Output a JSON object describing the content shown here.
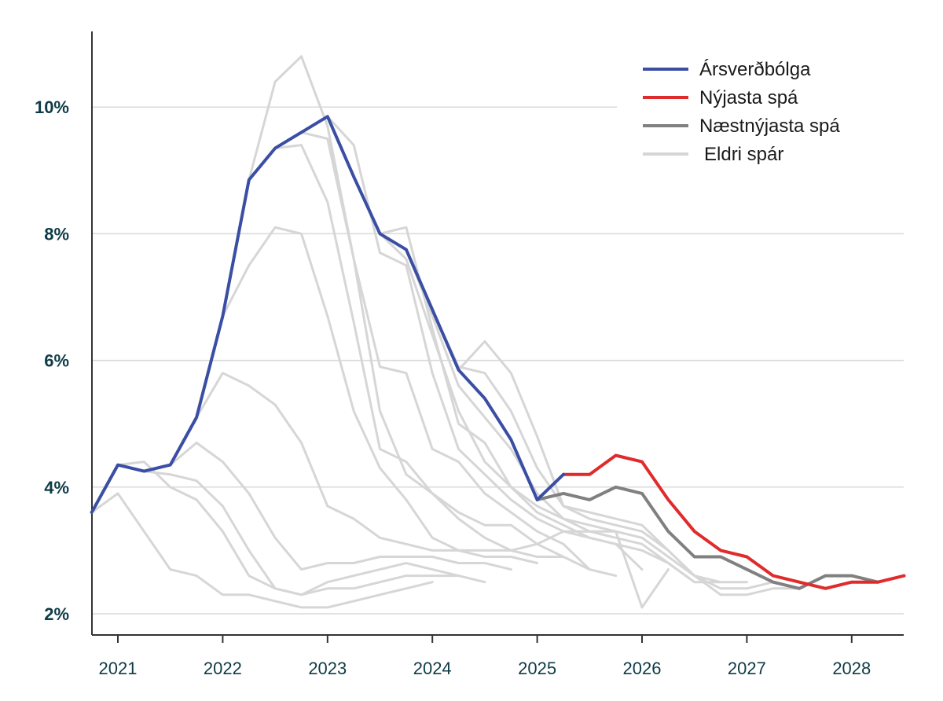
{
  "chart_data": {
    "type": "line",
    "title": "",
    "xlabel": "",
    "ylabel": "",
    "xlim": [
      2020.75,
      2028.5
    ],
    "ylim": [
      1.7,
      11.2
    ],
    "x_ticks": [
      {
        "value": 2021,
        "label": "2021"
      },
      {
        "value": 2022,
        "label": "2022"
      },
      {
        "value": 2023,
        "label": "2023"
      },
      {
        "value": 2024,
        "label": "2024"
      },
      {
        "value": 2025,
        "label": "2025"
      },
      {
        "value": 2026,
        "label": "2026"
      },
      {
        "value": 2027,
        "label": "2027"
      },
      {
        "value": 2028,
        "label": "2028"
      }
    ],
    "y_ticks": [
      {
        "value": 2,
        "label": "2%"
      },
      {
        "value": 4,
        "label": "4%"
      },
      {
        "value": 6,
        "label": "6%"
      },
      {
        "value": 8,
        "label": "8%"
      },
      {
        "value": 10,
        "label": "10%"
      }
    ],
    "grid": true,
    "legend_position": "top-right",
    "series": [
      {
        "name": "Árs­verðbólga",
        "label": "Ársverðbólga",
        "color": "#3a4ea3",
        "role": "actual",
        "points": [
          [
            2020.75,
            3.6
          ],
          [
            2021,
            4.35
          ],
          [
            2021.25,
            4.25
          ],
          [
            2021.5,
            4.35
          ],
          [
            2021.75,
            5.1
          ],
          [
            2022,
            6.7
          ],
          [
            2022.25,
            8.85
          ],
          [
            2022.5,
            9.35
          ],
          [
            2022.75,
            9.6
          ],
          [
            2023,
            9.85
          ],
          [
            2023.25,
            8.9
          ],
          [
            2023.5,
            8.0
          ],
          [
            2023.75,
            7.75
          ],
          [
            2024,
            6.8
          ],
          [
            2024.25,
            5.85
          ],
          [
            2024.5,
            5.4
          ],
          [
            2024.75,
            4.75
          ],
          [
            2025,
            3.8
          ],
          [
            2025.25,
            4.2
          ]
        ]
      },
      {
        "name": "Nýjasta spá",
        "label": "Nýjasta spá",
        "color": "#e02b2b",
        "role": "latest",
        "points": [
          [
            2025.25,
            4.2
          ],
          [
            2025.5,
            4.2
          ],
          [
            2025.75,
            4.5
          ],
          [
            2026,
            4.4
          ],
          [
            2026.25,
            3.8
          ],
          [
            2026.5,
            3.3
          ],
          [
            2026.75,
            3.0
          ],
          [
            2027,
            2.9
          ],
          [
            2027.25,
            2.6
          ],
          [
            2027.5,
            2.5
          ],
          [
            2027.75,
            2.4
          ],
          [
            2028,
            2.5
          ],
          [
            2028.25,
            2.5
          ],
          [
            2028.5,
            2.6
          ]
        ]
      },
      {
        "name": "Næstnýjasta spá",
        "label": "Næstnýjasta spá",
        "color": "#808080",
        "role": "previous",
        "points": [
          [
            2025,
            3.8
          ],
          [
            2025.25,
            3.9
          ],
          [
            2025.5,
            3.8
          ],
          [
            2025.75,
            4.0
          ],
          [
            2026,
            3.9
          ],
          [
            2026.25,
            3.3
          ],
          [
            2026.5,
            2.9
          ],
          [
            2026.75,
            2.9
          ],
          [
            2027,
            2.7
          ],
          [
            2027.25,
            2.5
          ],
          [
            2027.5,
            2.4
          ],
          [
            2027.75,
            2.6
          ],
          [
            2028,
            2.6
          ],
          [
            2028.25,
            2.5
          ]
        ]
      },
      {
        "name": "Eldri spár",
        "label": "Eldri spár",
        "color": "#d6d6d6",
        "role": "older",
        "lines": [
          [
            [
              2020.75,
              3.6
            ],
            [
              2021,
              3.9
            ],
            [
              2021.25,
              3.3
            ],
            [
              2021.5,
              2.7
            ],
            [
              2021.75,
              2.6
            ],
            [
              2022,
              2.3
            ],
            [
              2022.25,
              2.3
            ],
            [
              2022.5,
              2.2
            ],
            [
              2022.75,
              2.1
            ],
            [
              2023,
              2.1
            ],
            [
              2023.25,
              2.2
            ],
            [
              2023.5,
              2.3
            ],
            [
              2023.75,
              2.4
            ],
            [
              2024,
              2.5
            ]
          ],
          [
            [
              2021,
              4.35
            ],
            [
              2021.25,
              4.4
            ],
            [
              2021.5,
              4.0
            ],
            [
              2021.75,
              3.8
            ],
            [
              2022,
              3.3
            ],
            [
              2022.25,
              2.6
            ],
            [
              2022.5,
              2.4
            ],
            [
              2022.75,
              2.3
            ],
            [
              2023,
              2.5
            ],
            [
              2023.25,
              2.6
            ],
            [
              2023.5,
              2.7
            ],
            [
              2023.75,
              2.8
            ],
            [
              2024,
              2.7
            ],
            [
              2024.25,
              2.6
            ]
          ],
          [
            [
              2021.25,
              4.25
            ],
            [
              2021.5,
              4.2
            ],
            [
              2021.75,
              4.1
            ],
            [
              2022,
              3.7
            ],
            [
              2022.25,
              3.0
            ],
            [
              2022.5,
              2.4
            ],
            [
              2022.75,
              2.3
            ],
            [
              2023,
              2.4
            ],
            [
              2023.25,
              2.4
            ],
            [
              2023.5,
              2.5
            ],
            [
              2023.75,
              2.6
            ],
            [
              2024,
              2.6
            ],
            [
              2024.25,
              2.6
            ],
            [
              2024.5,
              2.5
            ]
          ],
          [
            [
              2021.5,
              4.35
            ],
            [
              2021.75,
              4.7
            ],
            [
              2022,
              4.4
            ],
            [
              2022.25,
              3.9
            ],
            [
              2022.5,
              3.2
            ],
            [
              2022.75,
              2.7
            ],
            [
              2023,
              2.8
            ],
            [
              2023.25,
              2.8
            ],
            [
              2023.5,
              2.9
            ],
            [
              2023.75,
              2.9
            ],
            [
              2024,
              2.9
            ],
            [
              2024.25,
              2.8
            ],
            [
              2024.5,
              2.8
            ],
            [
              2024.75,
              2.7
            ]
          ],
          [
            [
              2021.75,
              5.1
            ],
            [
              2022,
              5.8
            ],
            [
              2022.25,
              5.6
            ],
            [
              2022.5,
              5.3
            ],
            [
              2022.75,
              4.7
            ],
            [
              2023,
              3.7
            ],
            [
              2023.25,
              3.5
            ],
            [
              2023.5,
              3.2
            ],
            [
              2023.75,
              3.1
            ],
            [
              2024,
              3.0
            ],
            [
              2024.25,
              3.0
            ],
            [
              2024.5,
              2.9
            ],
            [
              2024.75,
              2.9
            ],
            [
              2025,
              2.8
            ]
          ],
          [
            [
              2022,
              6.7
            ],
            [
              2022.25,
              7.5
            ],
            [
              2022.5,
              8.1
            ],
            [
              2022.75,
              8.0
            ],
            [
              2023,
              6.7
            ],
            [
              2023.25,
              5.2
            ],
            [
              2023.5,
              4.3
            ],
            [
              2023.75,
              3.8
            ],
            [
              2024,
              3.2
            ],
            [
              2024.25,
              3.0
            ],
            [
              2024.5,
              3.0
            ],
            [
              2024.75,
              3.0
            ],
            [
              2025,
              2.9
            ],
            [
              2025.25,
              2.9
            ]
          ],
          [
            [
              2022.25,
              8.85
            ],
            [
              2022.5,
              10.4
            ],
            [
              2022.75,
              10.8
            ],
            [
              2023,
              9.7
            ],
            [
              2023.25,
              7.6
            ],
            [
              2023.5,
              5.9
            ],
            [
              2023.75,
              5.8
            ],
            [
              2024,
              4.6
            ],
            [
              2024.25,
              4.4
            ],
            [
              2024.5,
              3.9
            ],
            [
              2024.75,
              3.6
            ],
            [
              2025,
              3.3
            ],
            [
              2025.25,
              3.1
            ],
            [
              2025.5,
              2.7
            ]
          ],
          [
            [
              2022.5,
              9.35
            ],
            [
              2022.75,
              9.4
            ],
            [
              2023,
              8.5
            ],
            [
              2023.25,
              6.6
            ],
            [
              2023.5,
              4.6
            ],
            [
              2023.75,
              4.4
            ],
            [
              2024,
              3.9
            ],
            [
              2024.25,
              3.6
            ],
            [
              2024.5,
              3.4
            ],
            [
              2024.75,
              3.4
            ],
            [
              2025,
              3.1
            ],
            [
              2025.25,
              2.9
            ],
            [
              2025.5,
              2.7
            ],
            [
              2025.75,
              2.6
            ]
          ],
          [
            [
              2022.75,
              9.6
            ],
            [
              2023,
              9.5
            ],
            [
              2023.25,
              7.6
            ],
            [
              2023.5,
              5.2
            ],
            [
              2023.75,
              4.2
            ],
            [
              2024,
              3.9
            ],
            [
              2024.25,
              3.5
            ],
            [
              2024.5,
              3.2
            ],
            [
              2024.75,
              3.0
            ],
            [
              2025,
              3.1
            ],
            [
              2025.25,
              3.3
            ],
            [
              2025.5,
              3.2
            ],
            [
              2025.75,
              3.1
            ],
            [
              2026,
              2.7
            ]
          ],
          [
            [
              2023,
              9.85
            ],
            [
              2023.25,
              9.4
            ],
            [
              2023.5,
              7.7
            ],
            [
              2023.75,
              7.5
            ],
            [
              2024,
              5.8
            ],
            [
              2024.25,
              4.6
            ],
            [
              2024.5,
              4.2
            ],
            [
              2024.75,
              3.8
            ],
            [
              2025,
              3.5
            ],
            [
              2025.25,
              3.3
            ],
            [
              2025.5,
              3.3
            ],
            [
              2025.75,
              3.3
            ],
            [
              2026,
              2.1
            ],
            [
              2026.25,
              2.7
            ]
          ],
          [
            [
              2023.25,
              8.9
            ],
            [
              2023.5,
              8.0
            ],
            [
              2023.75,
              8.1
            ],
            [
              2024,
              6.5
            ],
            [
              2024.25,
              5.0
            ],
            [
              2024.5,
              4.7
            ],
            [
              2024.75,
              4.0
            ],
            [
              2025,
              3.6
            ],
            [
              2025.25,
              3.4
            ],
            [
              2025.5,
              3.2
            ],
            [
              2025.75,
              3.1
            ],
            [
              2026,
              3.0
            ],
            [
              2026.25,
              2.8
            ],
            [
              2026.5,
              2.5
            ]
          ],
          [
            [
              2023.5,
              8.0
            ],
            [
              2023.75,
              7.6
            ],
            [
              2024,
              6.4
            ],
            [
              2024.25,
              5.2
            ],
            [
              2024.5,
              4.4
            ],
            [
              2024.75,
              4.0
            ],
            [
              2025,
              3.7
            ],
            [
              2025.25,
              3.5
            ],
            [
              2025.5,
              3.3
            ],
            [
              2025.75,
              3.2
            ],
            [
              2026,
              3.1
            ],
            [
              2026.25,
              2.8
            ],
            [
              2026.5,
              2.5
            ],
            [
              2026.75,
              2.5
            ]
          ],
          [
            [
              2023.75,
              7.75
            ],
            [
              2024,
              6.7
            ],
            [
              2024.25,
              5.6
            ],
            [
              2024.5,
              5.1
            ],
            [
              2024.75,
              4.6
            ],
            [
              2025,
              3.9
            ],
            [
              2025.25,
              3.5
            ],
            [
              2025.5,
              3.4
            ],
            [
              2025.75,
              3.3
            ],
            [
              2026,
              3.2
            ],
            [
              2026.25,
              2.9
            ],
            [
              2026.5,
              2.6
            ],
            [
              2026.75,
              2.5
            ],
            [
              2027,
              2.5
            ]
          ],
          [
            [
              2024,
              6.8
            ],
            [
              2024.25,
              5.9
            ],
            [
              2024.5,
              5.8
            ],
            [
              2024.75,
              5.2
            ],
            [
              2025,
              4.3
            ],
            [
              2025.25,
              3.7
            ],
            [
              2025.5,
              3.5
            ],
            [
              2025.75,
              3.4
            ],
            [
              2026,
              3.3
            ],
            [
              2026.25,
              3.0
            ],
            [
              2026.5,
              2.6
            ],
            [
              2026.75,
              2.4
            ],
            [
              2027,
              2.4
            ],
            [
              2027.25,
              2.5
            ]
          ],
          [
            [
              2024.25,
              5.85
            ],
            [
              2024.5,
              6.3
            ],
            [
              2024.75,
              5.8
            ],
            [
              2025,
              4.8
            ],
            [
              2025.25,
              3.7
            ],
            [
              2025.5,
              3.6
            ],
            [
              2025.75,
              3.5
            ],
            [
              2026,
              3.4
            ],
            [
              2026.25,
              3.0
            ],
            [
              2026.5,
              2.6
            ],
            [
              2026.75,
              2.3
            ],
            [
              2027,
              2.3
            ],
            [
              2027.25,
              2.4
            ],
            [
              2027.5,
              2.4
            ]
          ]
        ]
      }
    ]
  }
}
